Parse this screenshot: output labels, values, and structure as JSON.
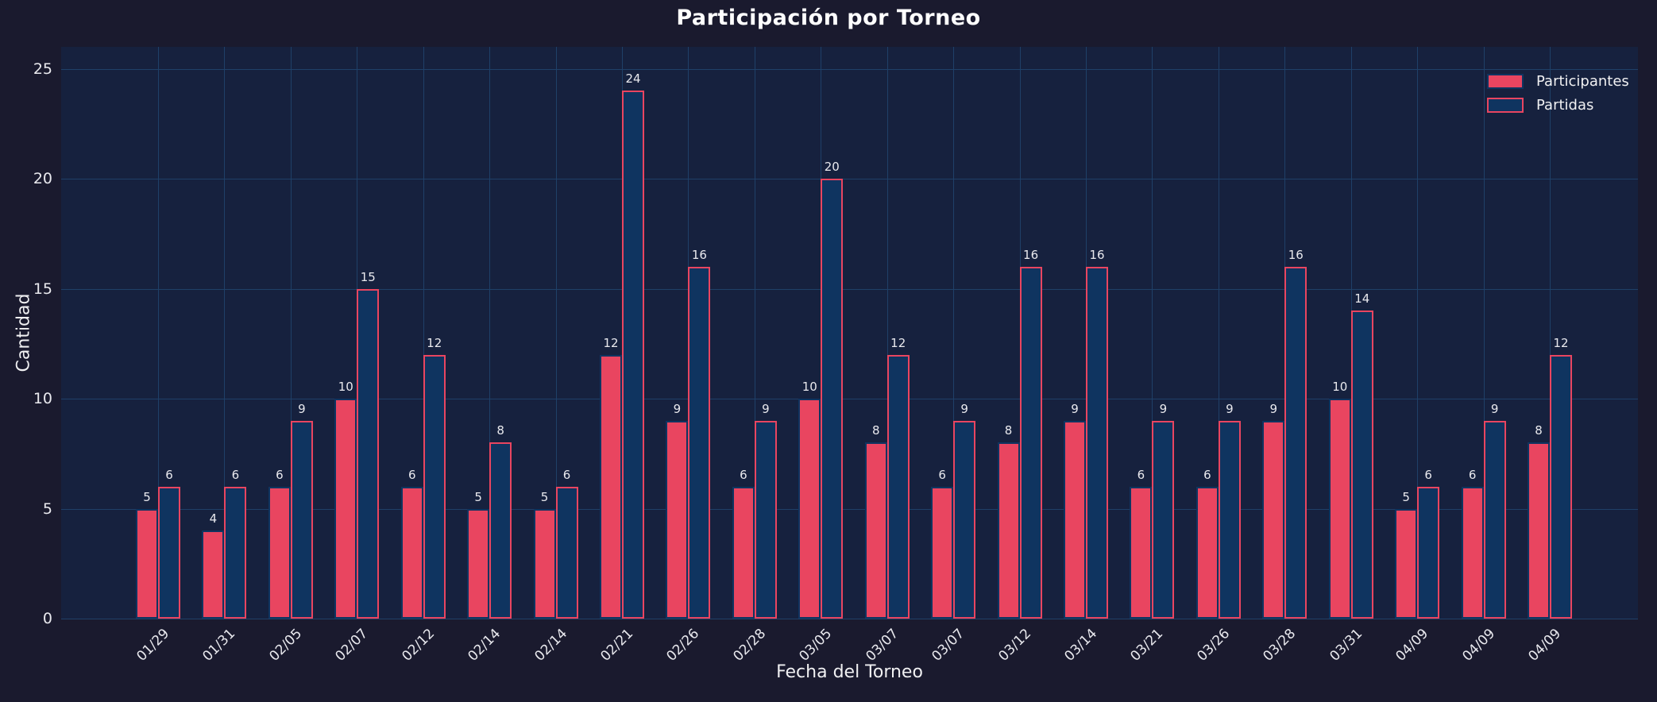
{
  "title": "Participación por Torneo",
  "chart_data": {
    "type": "bar",
    "title": "Participación por Torneo",
    "xlabel": "Fecha del Torneo",
    "ylabel": "Cantidad",
    "categories": [
      "01/29",
      "01/31",
      "02/05",
      "02/07",
      "02/12",
      "02/14",
      "02/14",
      "02/21",
      "02/26",
      "02/28",
      "03/05",
      "03/07",
      "03/07",
      "03/12",
      "03/14",
      "03/21",
      "03/26",
      "03/28",
      "03/31",
      "04/09",
      "04/09",
      "04/09"
    ],
    "series": [
      {
        "name": "Participantes",
        "color": "#e94560",
        "edge_color": "#0f3460",
        "values": [
          5,
          4,
          6,
          10,
          6,
          5,
          5,
          12,
          9,
          6,
          10,
          8,
          6,
          8,
          9,
          6,
          6,
          9,
          10,
          5,
          6,
          8
        ]
      },
      {
        "name": "Partidas",
        "color": "#0f3460",
        "edge_color": "#e94560",
        "values": [
          6,
          6,
          9,
          15,
          12,
          8,
          6,
          24,
          16,
          9,
          20,
          12,
          9,
          16,
          16,
          9,
          9,
          16,
          14,
          6,
          9,
          12
        ]
      }
    ],
    "ylim": [
      0,
      25
    ],
    "yticks": [
      0,
      5,
      10,
      15,
      20,
      25
    ],
    "grid": true,
    "legend_position": "upper-right",
    "bar_value_labels": true,
    "colors": {
      "background": "#1a1a2e",
      "plot_background": "#16213e",
      "grid": "#1f4068",
      "tick_text": "#e9e9ee",
      "label_text": "#f0f0f2",
      "title_text": "#ffffff"
    }
  }
}
